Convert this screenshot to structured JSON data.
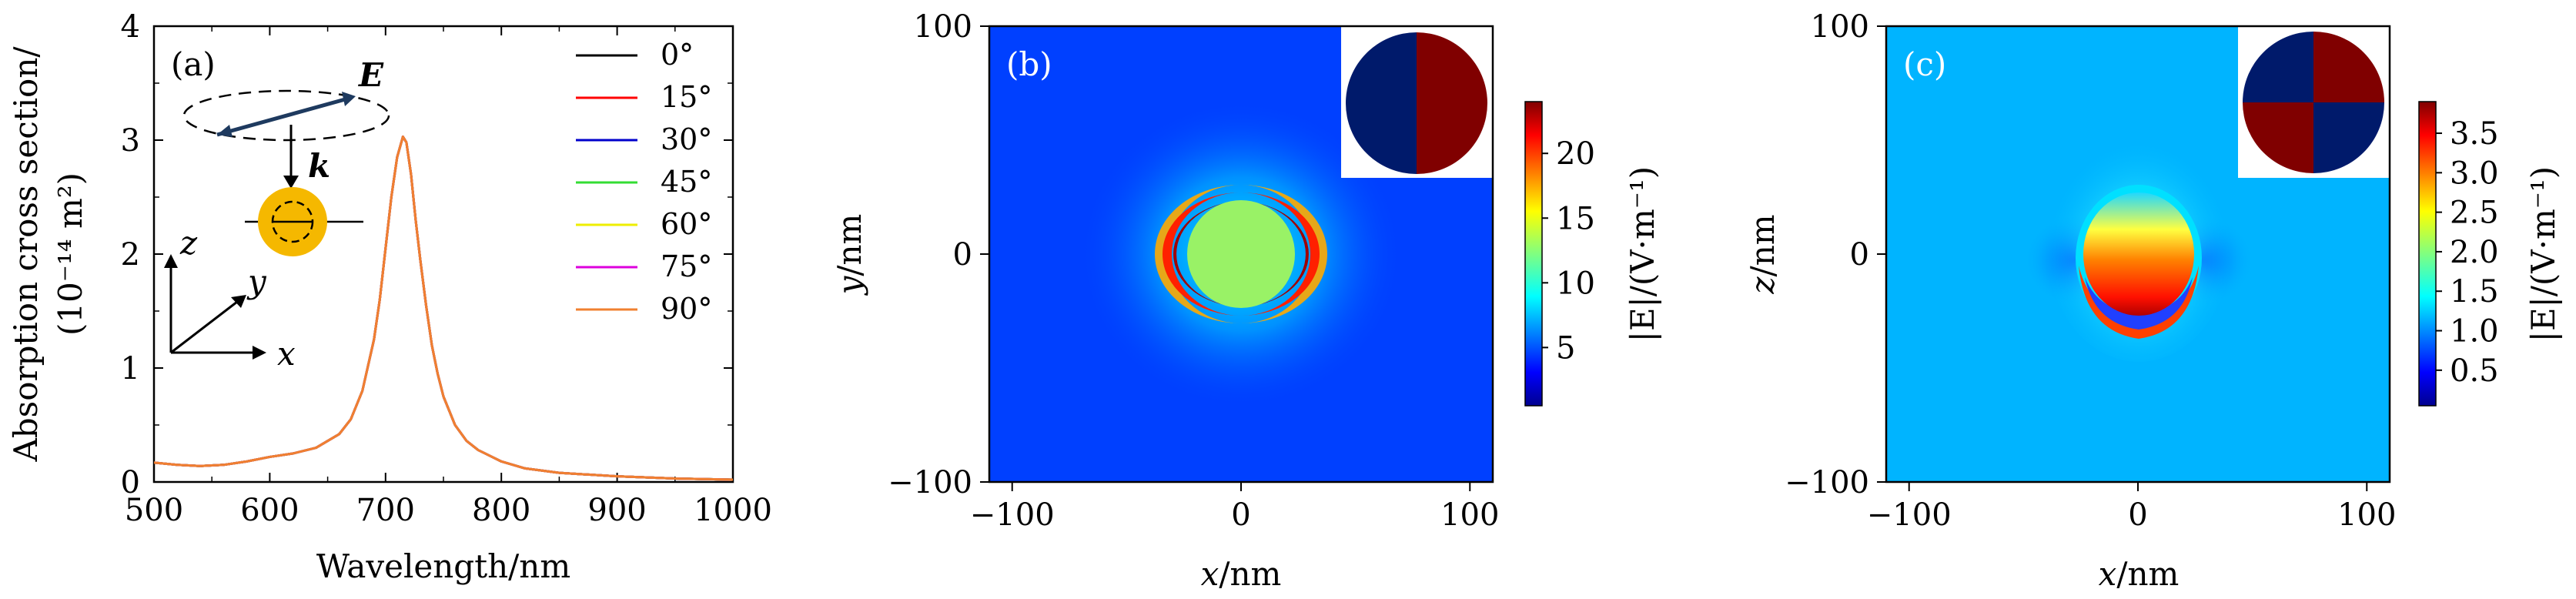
{
  "chart_data": [
    {
      "panel": "(a)",
      "type": "line",
      "xlabel": "Wavelength/nm",
      "ylabel_line1": "Absorption cross section/",
      "ylabel_line2": "(10⁻¹⁴ m²)",
      "xlim": [
        500,
        1000
      ],
      "ylim": [
        0,
        4
      ],
      "xticks": [
        500,
        600,
        700,
        800,
        900,
        1000
      ],
      "yticks": [
        0,
        1,
        2,
        3,
        4
      ],
      "grid": false,
      "legend_position": "top-right",
      "x": [
        500,
        520,
        540,
        560,
        580,
        600,
        620,
        640,
        660,
        670,
        680,
        690,
        695,
        700,
        705,
        710,
        715,
        718,
        722,
        726,
        730,
        735,
        740,
        745,
        750,
        760,
        770,
        780,
        800,
        820,
        850,
        900,
        950,
        1000
      ],
      "series": [
        {
          "name": "0°",
          "color": "#000000"
        },
        {
          "name": "15°",
          "color": "#ff0000"
        },
        {
          "name": "30°",
          "color": "#0000cc"
        },
        {
          "name": "45°",
          "color": "#33dd33"
        },
        {
          "name": "60°",
          "color": "#eeee00"
        },
        {
          "name": "75°",
          "color": "#dd00dd"
        },
        {
          "name": "90°",
          "color": "#f08030",
          "values": [
            0.17,
            0.15,
            0.14,
            0.15,
            0.18,
            0.22,
            0.25,
            0.3,
            0.42,
            0.55,
            0.8,
            1.25,
            1.6,
            2.05,
            2.5,
            2.85,
            3.03,
            2.98,
            2.7,
            2.3,
            1.95,
            1.55,
            1.2,
            0.95,
            0.75,
            0.5,
            0.36,
            0.28,
            0.18,
            0.12,
            0.08,
            0.05,
            0.03,
            0.02
          ]
        }
      ],
      "inset_labels": {
        "field": "E",
        "wavevector": "k",
        "axis_x": "x",
        "axis_y": "y",
        "axis_z": "z"
      }
    },
    {
      "panel": "(b)",
      "type": "heatmap",
      "xlabel_var": "x",
      "xlabel_unit": "/nm",
      "ylabel_var": "y",
      "ylabel_unit": "/nm",
      "xlim": [
        -110,
        110
      ],
      "ylim": [
        -100,
        100
      ],
      "xticks": [
        -100,
        0,
        100
      ],
      "yticks": [
        -100,
        0,
        100
      ],
      "colorbar_label": "|E|/(V·m⁻¹)",
      "colorbar_range": [
        0.5,
        24
      ],
      "colorbar_ticks": [
        5,
        10,
        15,
        20
      ],
      "inset": "split disc: left half navy, right half dark red"
    },
    {
      "panel": "(c)",
      "type": "heatmap",
      "xlabel_var": "x",
      "xlabel_unit": "/nm",
      "ylabel_var": "z",
      "ylabel_unit": "/nm",
      "xlim": [
        -110,
        110
      ],
      "ylim": [
        -100,
        100
      ],
      "xticks": [
        -100,
        0,
        100
      ],
      "yticks": [
        -100,
        0,
        100
      ],
      "colorbar_label": "|E|/(V·m⁻¹)",
      "colorbar_range": [
        0.05,
        3.9
      ],
      "colorbar_ticks": [
        "0.5",
        "1.0",
        "1.5",
        "2.0",
        "2.5",
        "3.0",
        "3.5"
      ],
      "inset": "quadrant disc: top-left navy, top-right dark red, bottom-left dark red, bottom-right navy"
    }
  ],
  "colors": {
    "jet_0": "#00008f",
    "jet_1": "#0000ff",
    "jet_2": "#0080ff",
    "jet_3": "#00ffff",
    "jet_4": "#80ff80",
    "jet_5": "#ffff00",
    "jet_6": "#ff8000",
    "jet_7": "#ff0000",
    "jet_8": "#800000",
    "particle": "#f5b800"
  }
}
